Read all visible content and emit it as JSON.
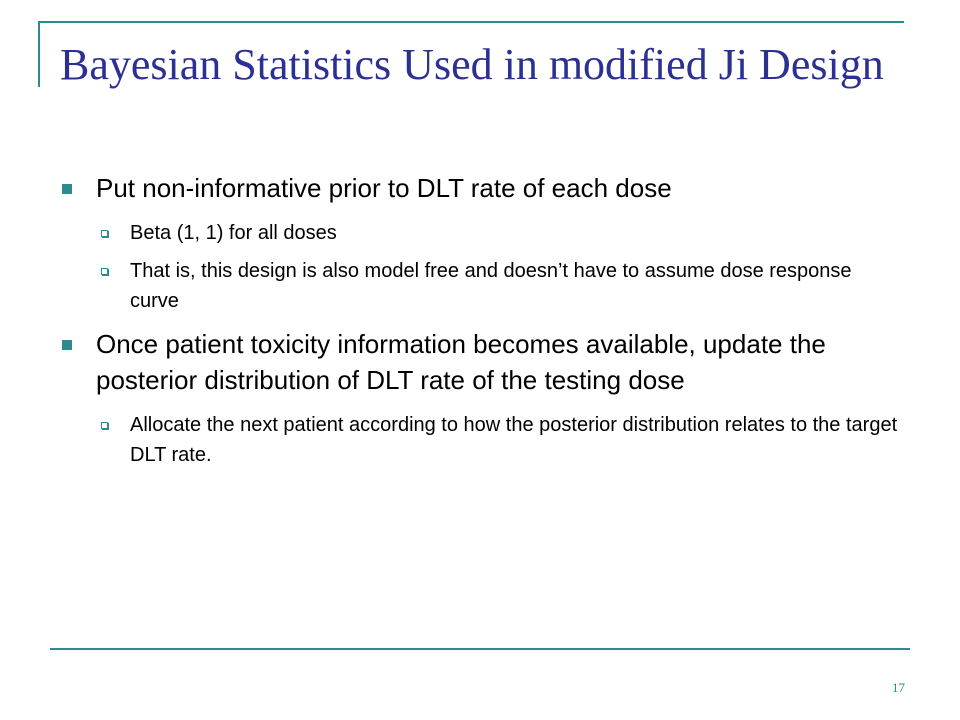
{
  "title": "Bayesian Statistics Used in modified Ji Design",
  "bullets": [
    {
      "text": "Put non-informative prior to DLT rate of each dose",
      "sub": [
        "Beta (1, 1) for all doses",
        "That is, this design is also model free and doesn’t have to assume dose response curve"
      ]
    },
    {
      "text": "Once patient toxicity information becomes available, update the posterior distribution of DLT rate of the testing dose",
      "sub": [
        "Allocate the next patient according to how the posterior distribution relates to the target DLT rate."
      ]
    }
  ],
  "page_number": "17",
  "colors": {
    "accent": "#2e8a8c",
    "title": "#2d3093",
    "text": "#000000"
  }
}
